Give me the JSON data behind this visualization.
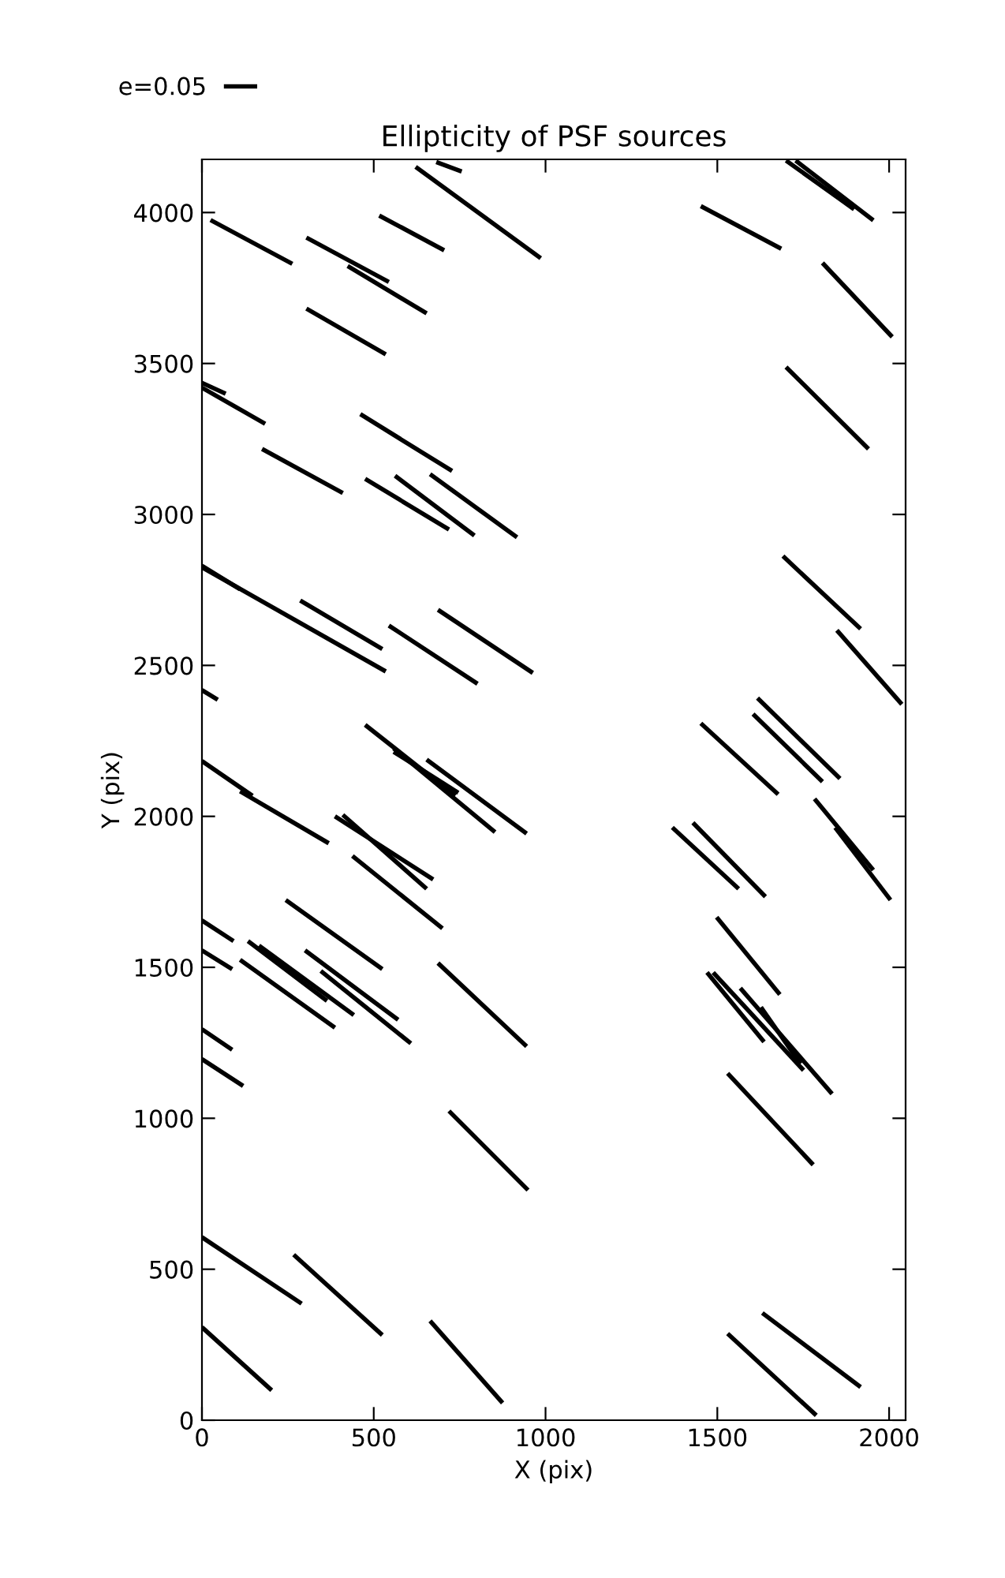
{
  "chart_data": {
    "type": "line",
    "title": "Ellipticity of PSF sources",
    "xlabel": "X (pix)",
    "ylabel": "Y (pix)",
    "xlim": [
      0,
      2048
    ],
    "ylim": [
      0,
      4176
    ],
    "xticks": [
      0,
      500,
      1000,
      1500,
      2000
    ],
    "yticks": [
      0,
      500,
      1000,
      1500,
      2000,
      2500,
      3000,
      3500,
      4000
    ],
    "legend": "top left",
    "grid": false,
    "marker": "none",
    "line_style": "solid",
    "series": [
      {
        "name": "e=0.05",
        "color": "#000000",
        "x": [
          25,
          263
        ],
        "values": [
          3975,
          3830
        ]
      },
      {
        "color": "#000000",
        "x": [
          304,
          544
        ],
        "values": [
          3917,
          3770
        ]
      },
      {
        "color": "#000000",
        "x": [
          424,
          654
        ],
        "values": [
          3823,
          3666
        ]
      },
      {
        "color": "#000000",
        "x": [
          516,
          705
        ],
        "values": [
          3990,
          3875
        ]
      },
      {
        "color": "#000000",
        "x": [
          622,
          986
        ],
        "values": [
          4151,
          3849
        ]
      },
      {
        "color": "#000000",
        "x": [
          682,
          756
        ],
        "values": [
          4167,
          4136
        ]
      },
      {
        "color": "#000000",
        "x": [
          304,
          535
        ],
        "values": [
          3682,
          3530
        ]
      },
      {
        "color": "#000000",
        "x": [
          0,
          69
        ],
        "values": [
          3436,
          3400
        ]
      },
      {
        "color": "#000000",
        "x": [
          0,
          184
        ],
        "values": [
          3420,
          3300
        ]
      },
      {
        "color": "#000000",
        "x": [
          175,
          410
        ],
        "values": [
          3217,
          3071
        ]
      },
      {
        "color": "#000000",
        "x": [
          461,
          728
        ],
        "values": [
          3332,
          3144
        ]
      },
      {
        "color": "#000000",
        "x": [
          475,
          719
        ],
        "values": [
          3118,
          2950
        ]
      },
      {
        "color": "#000000",
        "x": [
          562,
          793
        ],
        "values": [
          3128,
          2930
        ]
      },
      {
        "color": "#000000",
        "x": [
          664,
          917
        ],
        "values": [
          3133,
          2924
        ]
      },
      {
        "color": "#000000",
        "x": [
          0,
          111
        ],
        "values": [
          2830,
          2752
        ]
      },
      {
        "color": "#000000",
        "x": [
          0,
          535
        ],
        "values": [
          2825,
          2480
        ]
      },
      {
        "color": "#000000",
        "x": [
          286,
          525
        ],
        "values": [
          2715,
          2554
        ]
      },
      {
        "color": "#000000",
        "x": [
          544,
          802
        ],
        "values": [
          2632,
          2439
        ]
      },
      {
        "color": "#000000",
        "x": [
          687,
          963
        ],
        "values": [
          2684,
          2475
        ]
      },
      {
        "color": "#000000",
        "x": [
          0,
          46
        ],
        "values": [
          2418,
          2386
        ]
      },
      {
        "color": "#000000",
        "x": [
          0,
          147
        ],
        "values": [
          2183,
          2068
        ]
      },
      {
        "color": "#000000",
        "x": [
          111,
          369
        ],
        "values": [
          2083,
          1911
        ]
      },
      {
        "color": "#000000",
        "x": [
          475,
          737
        ],
        "values": [
          2303,
          2068
        ]
      },
      {
        "color": "#000000",
        "x": [
          558,
          853
        ],
        "values": [
          2225,
          1948
        ]
      },
      {
        "color": "#000000",
        "x": [
          654,
          945
        ],
        "values": [
          2188,
          1943
        ]
      },
      {
        "color": "#000000",
        "x": [
          558,
          746
        ],
        "values": [
          2214,
          2078
        ]
      },
      {
        "color": "#000000",
        "x": [
          387,
          673
        ],
        "values": [
          2000,
          1791
        ]
      },
      {
        "color": "#000000",
        "x": [
          410,
          654
        ],
        "values": [
          2005,
          1760
        ]
      },
      {
        "color": "#000000",
        "x": [
          438,
          700
        ],
        "values": [
          1869,
          1629
        ]
      },
      {
        "color": "#000000",
        "x": [
          244,
          525
        ],
        "values": [
          1723,
          1494
        ]
      },
      {
        "color": "#000000",
        "x": [
          0,
          92
        ],
        "values": [
          1655,
          1587
        ]
      },
      {
        "color": "#000000",
        "x": [
          0,
          88
        ],
        "values": [
          1556,
          1494
        ]
      },
      {
        "color": "#000000",
        "x": [
          134,
          364
        ],
        "values": [
          1587,
          1389
        ]
      },
      {
        "color": "#000000",
        "x": [
          166,
          442
        ],
        "values": [
          1572,
          1342
        ]
      },
      {
        "color": "#000000",
        "x": [
          111,
          387
        ],
        "values": [
          1525,
          1300
        ]
      },
      {
        "color": "#000000",
        "x": [
          300,
          571
        ],
        "values": [
          1556,
          1326
        ]
      },
      {
        "color": "#000000",
        "x": [
          346,
          608
        ],
        "values": [
          1488,
          1248
        ]
      },
      {
        "color": "#000000",
        "x": [
          687,
          945
        ],
        "values": [
          1514,
          1238
        ]
      },
      {
        "color": "#000000",
        "x": [
          0,
          88
        ],
        "values": [
          1295,
          1227
        ]
      },
      {
        "color": "#000000",
        "x": [
          0,
          120
        ],
        "values": [
          1196,
          1107
        ]
      },
      {
        "color": "#000000",
        "x": [
          719,
          949
        ],
        "values": [
          1024,
          762
        ]
      },
      {
        "color": "#000000",
        "x": [
          0,
          290
        ],
        "values": [
          606,
          386
        ]
      },
      {
        "color": "#000000",
        "x": [
          267,
          525
        ],
        "values": [
          548,
          282
        ]
      },
      {
        "color": "#000000",
        "x": [
          0,
          203
        ],
        "values": [
          308,
          99
        ]
      },
      {
        "color": "#000000",
        "x": [
          664,
          875
        ],
        "values": [
          329,
          57
        ]
      },
      {
        "color": "#000000",
        "x": [
          1452,
          1686
        ],
        "values": [
          4021,
          3880
        ]
      },
      {
        "color": "#000000",
        "x": [
          1806,
          2009
        ],
        "values": [
          3833,
          3588
        ]
      },
      {
        "color": "#000000",
        "x": [
          1700,
          1940
        ],
        "values": [
          3488,
          3217
        ]
      },
      {
        "color": "#000000",
        "x": [
          1691,
          1917
        ],
        "values": [
          2862,
          2621
        ]
      },
      {
        "color": "#000000",
        "x": [
          1848,
          2037
        ],
        "values": [
          2616,
          2371
        ]
      },
      {
        "color": "#000000",
        "x": [
          1700,
          1898
        ],
        "values": [
          4172,
          4011
        ]
      },
      {
        "color": "#000000",
        "x": [
          1728,
          1954
        ],
        "values": [
          4172,
          3974
        ]
      },
      {
        "color": "#000000",
        "x": [
          1452,
          1677
        ],
        "values": [
          2308,
          2073
        ]
      },
      {
        "color": "#000000",
        "x": [
          1617,
          1857
        ],
        "values": [
          2392,
          2125
        ]
      },
      {
        "color": "#000000",
        "x": [
          1604,
          1806
        ],
        "values": [
          2339,
          2115
        ]
      },
      {
        "color": "#000000",
        "x": [
          1783,
          1954
        ],
        "values": [
          2058,
          1822
        ]
      },
      {
        "color": "#000000",
        "x": [
          1843,
          2004
        ],
        "values": [
          1963,
          1723
        ]
      },
      {
        "color": "#000000",
        "x": [
          1369,
          1562
        ],
        "values": [
          1963,
          1760
        ]
      },
      {
        "color": "#000000",
        "x": [
          1429,
          1640
        ],
        "values": [
          1979,
          1734
        ]
      },
      {
        "color": "#000000",
        "x": [
          1498,
          1682
        ],
        "values": [
          1666,
          1410
        ]
      },
      {
        "color": "#000000",
        "x": [
          1470,
          1636
        ],
        "values": [
          1483,
          1253
        ]
      },
      {
        "color": "#000000",
        "x": [
          1488,
          1751
        ],
        "values": [
          1483,
          1159
        ]
      },
      {
        "color": "#000000",
        "x": [
          1567,
          1834
        ],
        "values": [
          1431,
          1081
        ]
      },
      {
        "color": "#000000",
        "x": [
          1627,
          1742
        ],
        "values": [
          1368,
          1180
        ]
      },
      {
        "color": "#000000",
        "x": [
          1530,
          1779
        ],
        "values": [
          1149,
          846
        ]
      },
      {
        "color": "#000000",
        "x": [
          1631,
          1917
        ],
        "values": [
          355,
          110
        ]
      },
      {
        "color": "#000000",
        "x": [
          1530,
          1788
        ],
        "values": [
          287,
          16
        ]
      }
    ]
  }
}
